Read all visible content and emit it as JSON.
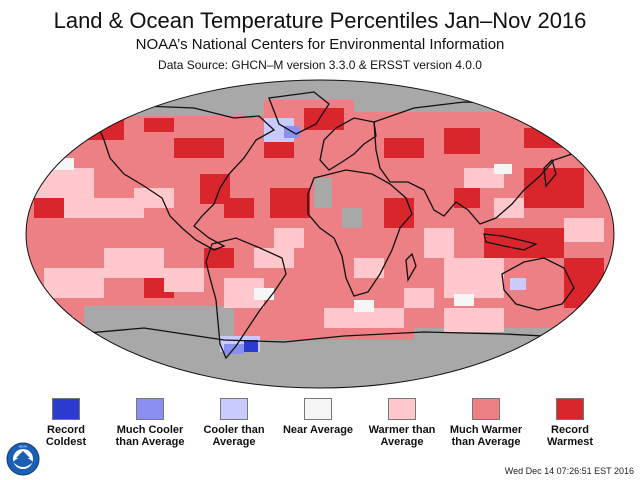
{
  "header": {
    "title": "Land & Ocean Temperature Percentiles Jan–Nov 2016",
    "subtitle": "NOAA’s National Centers for Environmental Information",
    "source": "Data Source: GHCN–M version 3.3.0 & ERSST version 4.0.0"
  },
  "legend": [
    {
      "name": "record-coldest",
      "label": "Record Coldest",
      "color": "#2b3bd0"
    },
    {
      "name": "much-cooler",
      "label": "Much Cooler than Average",
      "color": "#8a8ff0"
    },
    {
      "name": "cooler",
      "label": "Cooler than Average",
      "color": "#c9cbff"
    },
    {
      "name": "near",
      "label": "Near Average",
      "color": "#f5f5f5"
    },
    {
      "name": "warmer",
      "label": "Warmer than Average",
      "color": "#ffc8cc"
    },
    {
      "name": "much-warmer",
      "label": "Much Warmer than Average",
      "color": "#ec8085"
    },
    {
      "name": "record-warmest",
      "label": "Record Warmest",
      "color": "#d8262c"
    }
  ],
  "colors": {
    "no_data": "#a8a8a8",
    "coastline": "#111111",
    "ocean_base": "#ec8085"
  },
  "timestamp": "Wed Dec 14 07:26:51 EST 2016",
  "logo": {
    "text": "NOAA",
    "icon": "noaa-logo-icon"
  }
}
